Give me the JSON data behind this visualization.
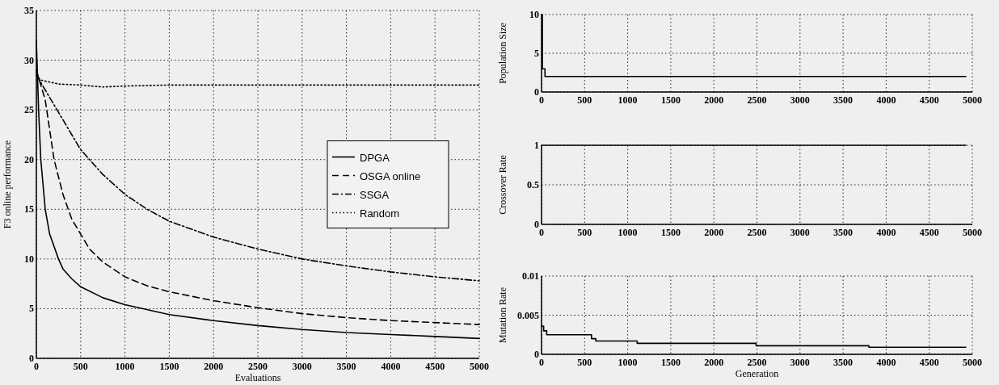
{
  "chart_data": [
    {
      "type": "line",
      "xlabel": "Evaluations",
      "ylabel": "F3 online performance",
      "xlim": [
        0,
        5000
      ],
      "xticks": [
        0,
        500,
        1000,
        1500,
        2000,
        2500,
        3000,
        3500,
        4000,
        4500,
        5000
      ],
      "ylim": [
        0,
        35
      ],
      "yticks": [
        0,
        5,
        10,
        15,
        20,
        25,
        30,
        35
      ],
      "grid": true,
      "legend": "right",
      "series": [
        {
          "name": "DPGA",
          "color": "#000000",
          "line_style": "solid",
          "x": [
            0,
            25,
            50,
            100,
            150,
            250,
            300,
            400,
            500,
            750,
            1000,
            1500,
            2000,
            2500,
            3000,
            3500,
            4000,
            4500,
            5000
          ],
          "values": [
            32,
            25,
            20,
            15,
            12.5,
            10,
            9,
            8,
            7.2,
            6.1,
            5.4,
            4.4,
            3.8,
            3.3,
            2.9,
            2.6,
            2.4,
            2.2,
            2.0
          ]
        },
        {
          "name": "OSGA online",
          "color": "#000000",
          "line_style": "dashed",
          "x": [
            0,
            50,
            100,
            150,
            200,
            300,
            400,
            500,
            600,
            750,
            1000,
            1250,
            1500,
            2000,
            2500,
            3000,
            3500,
            4000,
            4500,
            5000
          ],
          "values": [
            29,
            27.5,
            26,
            23,
            20,
            16.5,
            14,
            12.5,
            11,
            9.7,
            8.2,
            7.3,
            6.7,
            5.8,
            5.1,
            4.5,
            4.1,
            3.8,
            3.6,
            3.4
          ]
        },
        {
          "name": "SSGA",
          "color": "#000000",
          "line_style": "dashdot",
          "x": [
            0,
            100,
            200,
            300,
            500,
            750,
            1000,
            1250,
            1500,
            2000,
            2500,
            3000,
            3500,
            4000,
            4500,
            5000
          ],
          "values": [
            28.5,
            27,
            25.5,
            24,
            21,
            18.5,
            16.5,
            15,
            13.8,
            12.2,
            11,
            10,
            9.3,
            8.7,
            8.2,
            7.8
          ]
        },
        {
          "name": "Random",
          "color": "#000000",
          "line_style": "dotted",
          "x": [
            0,
            50,
            250,
            500,
            750,
            1000,
            1500,
            2000,
            3000,
            4000,
            5000
          ],
          "values": [
            28.5,
            28,
            27.6,
            27.5,
            27.3,
            27.4,
            27.5,
            27.5,
            27.5,
            27.5,
            27.5
          ]
        }
      ]
    },
    {
      "type": "step",
      "ylabel": "Population Size",
      "xlim": [
        0,
        5000
      ],
      "xticks": [
        0,
        500,
        1000,
        1500,
        2000,
        2500,
        3000,
        3500,
        4000,
        4500,
        5000
      ],
      "ylim": [
        0,
        10
      ],
      "yticks": [
        0,
        5,
        10
      ],
      "grid": true,
      "series": [
        {
          "color": "#000000",
          "x": [
            0,
            10,
            40,
            4925
          ],
          "values": [
            10,
            3,
            2,
            2
          ]
        }
      ]
    },
    {
      "type": "step",
      "ylabel": "Crossover Rate",
      "xlim": [
        0,
        5000
      ],
      "xticks": [
        0,
        500,
        1000,
        1500,
        2000,
        2500,
        3000,
        3500,
        4000,
        4500,
        5000
      ],
      "ylim": [
        0,
        1
      ],
      "yticks": [
        0,
        0.5,
        1
      ],
      "grid": true,
      "series": [
        {
          "color": "#000000",
          "x": [
            0,
            4925
          ],
          "values": [
            1,
            1
          ]
        }
      ]
    },
    {
      "type": "step",
      "xlabel": "Generation",
      "ylabel": "Mutation Rate",
      "xlim": [
        0,
        5000
      ],
      "xticks": [
        0,
        500,
        1000,
        1500,
        2000,
        2500,
        3000,
        3500,
        4000,
        4500,
        5000
      ],
      "ylim": [
        0,
        0.01
      ],
      "yticks": [
        0,
        0.005,
        0.01
      ],
      "grid": true,
      "series": [
        {
          "color": "#000000",
          "x": [
            0,
            25,
            60,
            580,
            630,
            1110,
            2490,
            3800,
            4925
          ],
          "values": [
            0.0036,
            0.003,
            0.0025,
            0.002,
            0.0017,
            0.0014,
            0.0011,
            0.0009,
            0.0009
          ]
        }
      ]
    }
  ]
}
